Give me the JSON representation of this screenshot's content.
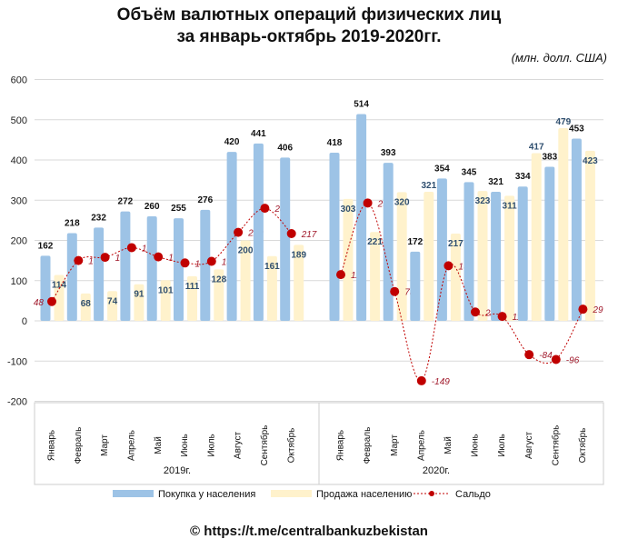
{
  "title_line1": "Объём валютных операций физических лиц",
  "title_line2": "за январь-октябрь 2019-2020гг.",
  "units": "(млн. долл. США)",
  "footer": "© https://t.me/centralbankuzbekistan",
  "chart_data": {
    "type": "bar",
    "ylim": [
      -200,
      600
    ],
    "yticks": [
      "-200",
      "-100",
      "0",
      "100",
      "200",
      "300",
      "400",
      "500",
      "600"
    ],
    "grid": true,
    "legend_placement": "bottom",
    "groups": [
      {
        "label": "2019г.",
        "categories": [
          "Январь",
          "Февраль",
          "Март",
          "Апрель",
          "Май",
          "Июнь",
          "Июль",
          "Август",
          "Сентябрь",
          "Октябрь"
        ],
        "buy": [
          162,
          218,
          232,
          272,
          260,
          255,
          276,
          420,
          441,
          406
        ],
        "sell": [
          114,
          68,
          74,
          91,
          101,
          111,
          128,
          200,
          161,
          189
        ],
        "saldo": [
          48,
          150,
          158,
          182,
          159,
          144,
          148,
          220,
          280,
          217
        ]
      },
      {
        "label": "2020г.",
        "categories": [
          "Январь",
          "Февраль",
          "Март",
          "Апрель",
          "Май",
          "Июнь",
          "Июль",
          "Август",
          "Сентябрь",
          "Октябрь"
        ],
        "buy": [
          418,
          514,
          393,
          172,
          354,
          345,
          321,
          334,
          383,
          453
        ],
        "sell": [
          303,
          221,
          320,
          321,
          217,
          323,
          311,
          417,
          479,
          423
        ],
        "saldo": [
          115,
          293,
          73,
          -149,
          137,
          22,
          11,
          -84,
          -96,
          29
        ]
      }
    ],
    "series": [
      {
        "name": "Покупка у населения",
        "type": "bar",
        "color": "#9dc3e6"
      },
      {
        "name": "Продажа населению",
        "type": "bar",
        "color": "#fff2cc"
      },
      {
        "name": "Сальдо",
        "type": "line",
        "color": "#c00000"
      }
    ]
  }
}
